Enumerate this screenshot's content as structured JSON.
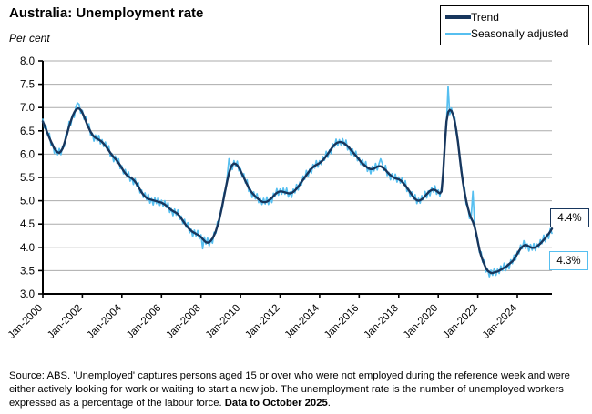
{
  "title": "Australia: Unemployment rate",
  "y_axis_unit": "Per cent",
  "legend": {
    "items": [
      {
        "label": "Trend",
        "color": "#17365D"
      },
      {
        "label": "Seasonally adjusted",
        "color": "#56BFF0"
      }
    ]
  },
  "annotations": [
    {
      "text": "4.4%",
      "series": "Trend",
      "border_color": "#17365D"
    },
    {
      "text": "4.3%",
      "series": "Seasonally adjusted",
      "border_color": "#56BFF0"
    }
  ],
  "source_note": {
    "prefix": "Source: ABS.  'Unemployed' captures persons aged 15 or over who were not employed during the reference week and were either actively looking for work or waiting to start a new job. The unemployment rate is the number of unemployed workers expressed as a percentage of the labour force.  ",
    "bold": "Data to October 2025",
    "suffix": "."
  },
  "colors": {
    "trend": "#17365D",
    "seasonally_adjusted": "#56BFF0",
    "gridline": "#ABABAB",
    "axis": "#000000"
  },
  "chart_data": {
    "type": "line",
    "title": "Australia: Unemployment rate",
    "ylabel": "Per cent",
    "ylim": [
      3.0,
      8.0
    ],
    "yticks": [
      "8.0",
      "7.5",
      "7.0",
      "6.5",
      "6.0",
      "5.5",
      "5.0",
      "4.5",
      "4.0",
      "3.5",
      "3.0"
    ],
    "grid": "horizontal (at each 0.5 from 3.5 to 8.0)",
    "legend_position": "top-right",
    "x_unit": "month",
    "x_range": [
      "Jan-2000",
      "Oct-2025"
    ],
    "months_total": 310,
    "xticks": [
      "Jan-2000",
      "Jan-2002",
      "Jan-2004",
      "Jan-2006",
      "Jan-2008",
      "Jan-2010",
      "Jan-2012",
      "Jan-2014",
      "Jan-2016",
      "Jan-2018",
      "Jan-2020",
      "Jan-2022",
      "Jan-2024"
    ],
    "xtick_month_indices": [
      0,
      24,
      48,
      72,
      96,
      120,
      144,
      168,
      192,
      216,
      240,
      264,
      288
    ],
    "end_labels": [
      {
        "series": "Trend",
        "text": "4.4%",
        "value": 4.4
      },
      {
        "series": "Seasonally adjusted",
        "text": "4.3%",
        "value": 4.3
      }
    ],
    "series": [
      {
        "name": "Trend",
        "color": "#17365D",
        "stroke_width": 2.4,
        "values": [
          6.7,
          6.62,
          6.53,
          6.44,
          6.35,
          6.27,
          6.19,
          6.12,
          6.07,
          6.04,
          6.03,
          6.06,
          6.12,
          6.22,
          6.34,
          6.47,
          6.6,
          6.71,
          6.81,
          6.89,
          6.95,
          6.98,
          6.98,
          6.95,
          6.89,
          6.81,
          6.72,
          6.63,
          6.55,
          6.48,
          6.42,
          6.38,
          6.35,
          6.33,
          6.31,
          6.29,
          6.26,
          6.22,
          6.18,
          6.13,
          6.08,
          6.03,
          5.98,
          5.94,
          5.9,
          5.86,
          5.81,
          5.76,
          5.7,
          5.64,
          5.59,
          5.55,
          5.52,
          5.5,
          5.48,
          5.45,
          5.41,
          5.36,
          5.3,
          5.24,
          5.18,
          5.13,
          5.09,
          5.06,
          5.04,
          5.03,
          5.02,
          5.01,
          5.0,
          4.99,
          4.98,
          4.97,
          4.96,
          4.94,
          4.92,
          4.89,
          4.86,
          4.83,
          4.8,
          4.78,
          4.76,
          4.74,
          4.71,
          4.67,
          4.62,
          4.57,
          4.52,
          4.47,
          4.43,
          4.39,
          4.36,
          4.33,
          4.31,
          4.29,
          4.27,
          4.25,
          4.22,
          4.18,
          4.14,
          4.11,
          4.1,
          4.11,
          4.14,
          4.19,
          4.26,
          4.35,
          4.46,
          4.59,
          4.74,
          4.91,
          5.09,
          5.27,
          5.44,
          5.59,
          5.7,
          5.77,
          5.8,
          5.79,
          5.76,
          5.71,
          5.64,
          5.57,
          5.5,
          5.42,
          5.35,
          5.28,
          5.22,
          5.17,
          5.13,
          5.09,
          5.06,
          5.03,
          5.0,
          4.98,
          4.97,
          4.97,
          4.98,
          5.0,
          5.03,
          5.06,
          5.1,
          5.14,
          5.17,
          5.19,
          5.2,
          5.2,
          5.19,
          5.18,
          5.17,
          5.16,
          5.16,
          5.17,
          5.19,
          5.22,
          5.26,
          5.3,
          5.35,
          5.4,
          5.45,
          5.5,
          5.55,
          5.6,
          5.65,
          5.69,
          5.72,
          5.75,
          5.77,
          5.79,
          5.81,
          5.84,
          5.87,
          5.91,
          5.96,
          6.01,
          6.06,
          6.11,
          6.16,
          6.2,
          6.23,
          6.25,
          6.26,
          6.26,
          6.25,
          6.23,
          6.2,
          6.17,
          6.13,
          6.09,
          6.05,
          6.01,
          5.97,
          5.93,
          5.88,
          5.84,
          5.8,
          5.77,
          5.74,
          5.71,
          5.69,
          5.68,
          5.68,
          5.69,
          5.71,
          5.73,
          5.74,
          5.74,
          5.72,
          5.69,
          5.66,
          5.62,
          5.58,
          5.55,
          5.52,
          5.5,
          5.48,
          5.47,
          5.46,
          5.44,
          5.41,
          5.37,
          5.33,
          5.28,
          5.23,
          5.18,
          5.13,
          5.08,
          5.04,
          5.01,
          5.0,
          5.01,
          5.03,
          5.06,
          5.1,
          5.14,
          5.18,
          5.21,
          5.23,
          5.24,
          5.23,
          5.21,
          5.18,
          5.16,
          5.2,
          5.6,
          6.2,
          6.7,
          6.9,
          6.95,
          6.93,
          6.85,
          6.7,
          6.5,
          6.25,
          5.95,
          5.65,
          5.4,
          5.18,
          5.0,
          4.85,
          4.72,
          4.62,
          4.55,
          4.45,
          4.3,
          4.12,
          3.95,
          3.82,
          3.72,
          3.63,
          3.55,
          3.5,
          3.47,
          3.45,
          3.45,
          3.46,
          3.47,
          3.48,
          3.5,
          3.52,
          3.54,
          3.56,
          3.58,
          3.61,
          3.64,
          3.67,
          3.7,
          3.74,
          3.8,
          3.86,
          3.92,
          3.97,
          4.01,
          4.04,
          4.05,
          4.04,
          4.02,
          4.0,
          3.99,
          3.99,
          4.0,
          4.02,
          4.05,
          4.08,
          4.12,
          4.16,
          4.2,
          4.25,
          4.29,
          4.34,
          4.4
        ]
      },
      {
        "name": "Seasonally adjusted",
        "color": "#56BFF0",
        "stroke_width": 1.7,
        "values": [
          6.75,
          6.56,
          6.61,
          6.4,
          6.45,
          6.19,
          6.22,
          6.02,
          6.13,
          5.99,
          6.12,
          5.99,
          6.17,
          6.16,
          6.42,
          6.43,
          6.7,
          6.63,
          6.84,
          6.79,
          7.01,
          7.1,
          7.07,
          6.88,
          6.94,
          6.75,
          6.8,
          6.59,
          6.65,
          6.4,
          6.45,
          6.28,
          6.41,
          6.28,
          6.4,
          6.22,
          6.31,
          6.16,
          6.26,
          6.09,
          6.18,
          5.95,
          6.01,
          5.84,
          5.96,
          5.81,
          5.9,
          5.69,
          5.75,
          5.58,
          5.67,
          5.51,
          5.62,
          5.42,
          5.51,
          5.35,
          5.47,
          5.31,
          5.39,
          5.17,
          5.23,
          5.07,
          5.17,
          5.02,
          5.14,
          4.95,
          5.05,
          4.91,
          5.06,
          4.94,
          5.07,
          4.9,
          5.01,
          4.88,
          5.0,
          4.85,
          4.96,
          4.75,
          4.83,
          4.68,
          4.82,
          4.69,
          4.8,
          4.6,
          4.67,
          4.51,
          4.6,
          4.43,
          4.53,
          4.31,
          4.39,
          4.23,
          4.37,
          4.24,
          4.36,
          4.18,
          4.27,
          3.97,
          4.22,
          4.07,
          4.2,
          4.03,
          4.17,
          4.09,
          4.32,
          4.3,
          4.55,
          4.52,
          4.79,
          4.85,
          5.17,
          5.23,
          5.54,
          5.9,
          5.73,
          5.67,
          5.86,
          5.74,
          5.85,
          5.64,
          5.69,
          5.51,
          5.58,
          5.38,
          5.45,
          5.2,
          5.25,
          5.07,
          5.19,
          5.04,
          5.15,
          4.96,
          5.05,
          4.92,
          5.05,
          4.93,
          5.08,
          4.92,
          5.06,
          4.96,
          5.16,
          5.09,
          5.26,
          5.12,
          5.25,
          5.14,
          5.27,
          5.14,
          5.27,
          5.08,
          5.19,
          5.07,
          5.25,
          5.17,
          5.35,
          5.23,
          5.4,
          5.34,
          5.53,
          5.46,
          5.65,
          5.52,
          5.68,
          5.59,
          5.78,
          5.7,
          5.86,
          5.72,
          5.86,
          5.78,
          5.95,
          5.87,
          6.06,
          5.93,
          6.09,
          6.01,
          6.22,
          6.15,
          6.32,
          6.18,
          6.31,
          6.2,
          6.33,
          6.19,
          6.3,
          6.09,
          6.16,
          5.99,
          6.11,
          5.96,
          6.06,
          5.86,
          5.93,
          5.78,
          5.88,
          5.73,
          5.84,
          5.63,
          5.72,
          5.58,
          5.74,
          5.64,
          5.8,
          5.66,
          5.79,
          5.9,
          5.8,
          5.65,
          5.76,
          5.54,
          5.61,
          5.45,
          5.58,
          5.45,
          5.57,
          5.4,
          5.51,
          5.38,
          5.49,
          5.33,
          5.43,
          5.2,
          5.26,
          5.08,
          5.19,
          5.03,
          5.13,
          4.94,
          5.05,
          4.95,
          5.11,
          5.02,
          5.2,
          5.06,
          5.21,
          5.11,
          5.29,
          5.19,
          5.32,
          5.14,
          5.23,
          5.1,
          5.28,
          5.56,
          6.3,
          6.62,
          7.45,
          6.85,
          6.99,
          6.8,
          6.79,
          6.43,
          6.3,
          5.89,
          5.73,
          5.36,
          5.28,
          4.92,
          4.88,
          4.62,
          4.68,
          5.2,
          4.54,
          4.23,
          4.17,
          3.89,
          3.9,
          3.68,
          3.73,
          3.47,
          3.53,
          3.37,
          3.51,
          3.4,
          3.55,
          3.4,
          3.53,
          3.44,
          3.6,
          3.5,
          3.66,
          3.5,
          3.64,
          3.54,
          3.73,
          3.65,
          3.83,
          3.73,
          3.91,
          3.86,
          4.05,
          3.97,
          4.14,
          3.97,
          4.07,
          3.92,
          4.06,
          3.94,
          4.08,
          3.93,
          4.07,
          3.99,
          4.16,
          4.08,
          4.26,
          4.12,
          4.28,
          4.19,
          4.4,
          4.3
        ]
      }
    ]
  }
}
